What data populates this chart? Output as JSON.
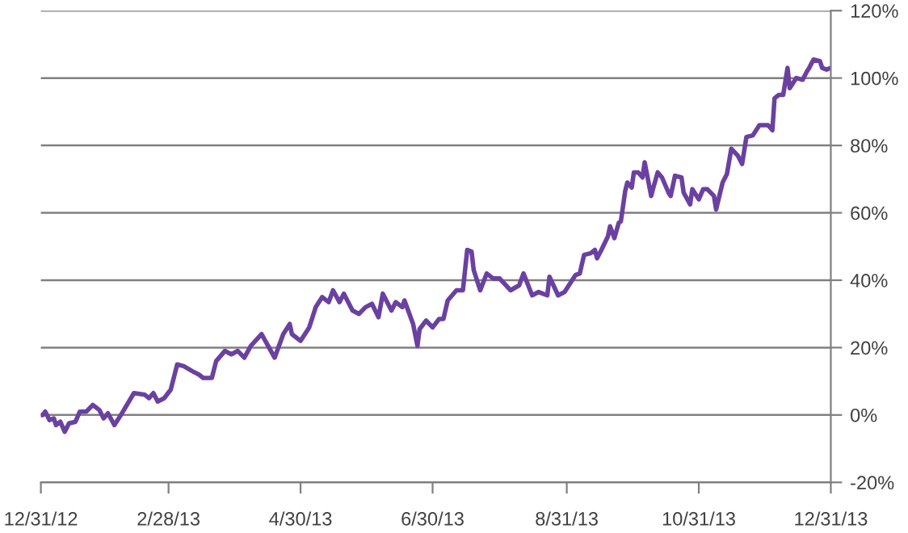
{
  "chart_data": {
    "type": "line",
    "x": [
      "2012-12-31",
      "2013-01-01",
      "2013-01-02",
      "2013-01-04",
      "2013-01-06",
      "2013-01-07",
      "2013-01-09",
      "2013-01-11",
      "2013-01-13",
      "2013-01-16",
      "2013-01-18",
      "2013-01-21",
      "2013-01-24",
      "2013-01-27",
      "2013-01-29",
      "2013-01-31",
      "2013-02-03",
      "2013-02-06",
      "2013-02-12",
      "2013-02-17",
      "2013-02-19",
      "2013-02-21",
      "2013-02-23",
      "2013-02-26",
      "2013-03-01",
      "2013-03-04",
      "2013-03-07",
      "2013-03-11",
      "2013-03-14",
      "2013-03-16",
      "2013-03-20",
      "2013-03-22",
      "2013-03-26",
      "2013-03-29",
      "2013-04-01",
      "2013-04-04",
      "2013-04-07",
      "2013-04-12",
      "2013-04-15",
      "2013-04-18",
      "2013-04-22",
      "2013-04-25",
      "2013-04-26",
      "2013-04-30",
      "2013-05-04",
      "2013-05-07",
      "2013-05-10",
      "2013-05-13",
      "2013-05-15",
      "2013-05-18",
      "2013-05-20",
      "2013-05-24",
      "2013-05-27",
      "2013-05-30",
      "2013-06-02",
      "2013-06-05",
      "2013-06-07",
      "2013-06-11",
      "2013-06-13",
      "2013-06-16",
      "2013-06-17",
      "2013-06-21",
      "2013-06-23",
      "2013-06-24",
      "2013-06-27",
      "2013-06-30",
      "2013-07-03",
      "2013-07-05",
      "2013-07-07",
      "2013-07-11",
      "2013-07-13",
      "2013-07-14",
      "2013-07-16",
      "2013-07-18",
      "2013-07-19",
      "2013-07-22",
      "2013-07-25",
      "2013-07-28",
      "2013-07-31",
      "2013-08-05",
      "2013-08-09",
      "2013-08-11",
      "2013-08-15",
      "2013-08-18",
      "2013-08-22",
      "2013-08-23",
      "2013-08-27",
      "2013-08-30",
      "2013-09-02",
      "2013-09-04",
      "2013-09-06",
      "2013-09-08",
      "2013-09-11",
      "2013-09-13",
      "2013-09-14",
      "2013-09-16",
      "2013-09-19",
      "2013-09-20",
      "2013-09-22",
      "2013-09-24",
      "2013-09-25",
      "2013-09-27",
      "2013-09-28",
      "2013-09-30",
      "2013-10-01",
      "2013-10-03",
      "2013-10-05",
      "2013-10-06",
      "2013-10-09",
      "2013-10-10",
      "2013-10-12",
      "2013-10-14",
      "2013-10-17",
      "2013-10-18",
      "2013-10-20",
      "2013-10-23",
      "2013-10-24",
      "2013-10-27",
      "2013-10-28",
      "2013-10-31",
      "2013-11-02",
      "2013-11-04",
      "2013-11-07",
      "2013-11-08",
      "2013-11-11",
      "2013-11-13",
      "2013-11-15",
      "2013-11-18",
      "2013-11-20",
      "2013-11-22",
      "2013-11-25",
      "2013-11-28",
      "2013-12-02",
      "2013-12-04",
      "2013-12-05",
      "2013-12-07",
      "2013-12-09",
      "2013-12-11",
      "2013-12-12",
      "2013-12-15",
      "2013-12-18",
      "2013-12-20",
      "2013-12-21",
      "2013-12-23",
      "2013-12-26",
      "2013-12-27",
      "2013-12-29",
      "2013-12-31"
    ],
    "series": [
      {
        "color": "#6a41a0",
        "values": [
          0,
          0,
          1,
          -1.5,
          -1,
          -3,
          -2,
          -5,
          -2.5,
          -2,
          1,
          1,
          3,
          1.5,
          -1,
          0.5,
          -3,
          0,
          6.5,
          6,
          5,
          6.5,
          4,
          5,
          7.5,
          15,
          14.5,
          13,
          12,
          11,
          11,
          16,
          19,
          18,
          19,
          17,
          20.5,
          24,
          20.5,
          17,
          24,
          27,
          24,
          22,
          26,
          32,
          35,
          33.5,
          37,
          33.5,
          36,
          31,
          30,
          32,
          33,
          29,
          36,
          31,
          33.5,
          32,
          34,
          27,
          20.5,
          25.5,
          28,
          26,
          28.5,
          28.5,
          34,
          37,
          37,
          37,
          49,
          48.5,
          43,
          37,
          42,
          40.5,
          40.5,
          37,
          38.5,
          42,
          35.5,
          36.5,
          35.5,
          41,
          35.5,
          36.5,
          39.5,
          41.5,
          42,
          47.5,
          48,
          49,
          46.5,
          49,
          53,
          56,
          52.5,
          57,
          57.5,
          66.5,
          69,
          67.5,
          72,
          72,
          70.5,
          75,
          65,
          67.5,
          72,
          70.5,
          66,
          65,
          71,
          70.5,
          66,
          62.5,
          67,
          64,
          67,
          67,
          65,
          61,
          69,
          71.5,
          79,
          77,
          74.5,
          82.5,
          83,
          86,
          86,
          84.5,
          94,
          95,
          95,
          103,
          97,
          100,
          99.5,
          102,
          103,
          105.5,
          105,
          103,
          102.5,
          103
        ]
      }
    ],
    "xlim": [
      "2012-12-31",
      "2013-12-31"
    ],
    "xticks": [
      {
        "value": "2012-12-31",
        "label": "12/31/12"
      },
      {
        "value": "2013-02-28",
        "label": "2/28/13"
      },
      {
        "value": "2013-04-30",
        "label": "4/30/13"
      },
      {
        "value": "2013-06-30",
        "label": "6/30/13"
      },
      {
        "value": "2013-08-31",
        "label": "8/31/13"
      },
      {
        "value": "2013-10-31",
        "label": "10/31/13"
      },
      {
        "value": "2013-12-31",
        "label": "12/31/13"
      }
    ],
    "ylim": [
      -20,
      120
    ],
    "yticks": [
      {
        "value": -20,
        "label": "-20%"
      },
      {
        "value": 0,
        "label": "0%"
      },
      {
        "value": 20,
        "label": "20%"
      },
      {
        "value": 40,
        "label": "40%"
      },
      {
        "value": 60,
        "label": "60%"
      },
      {
        "value": 80,
        "label": "80%"
      },
      {
        "value": 100,
        "label": "100%"
      },
      {
        "value": 120,
        "label": "120%"
      }
    ],
    "grid": "y",
    "marker": "none",
    "line_style": "solid"
  }
}
